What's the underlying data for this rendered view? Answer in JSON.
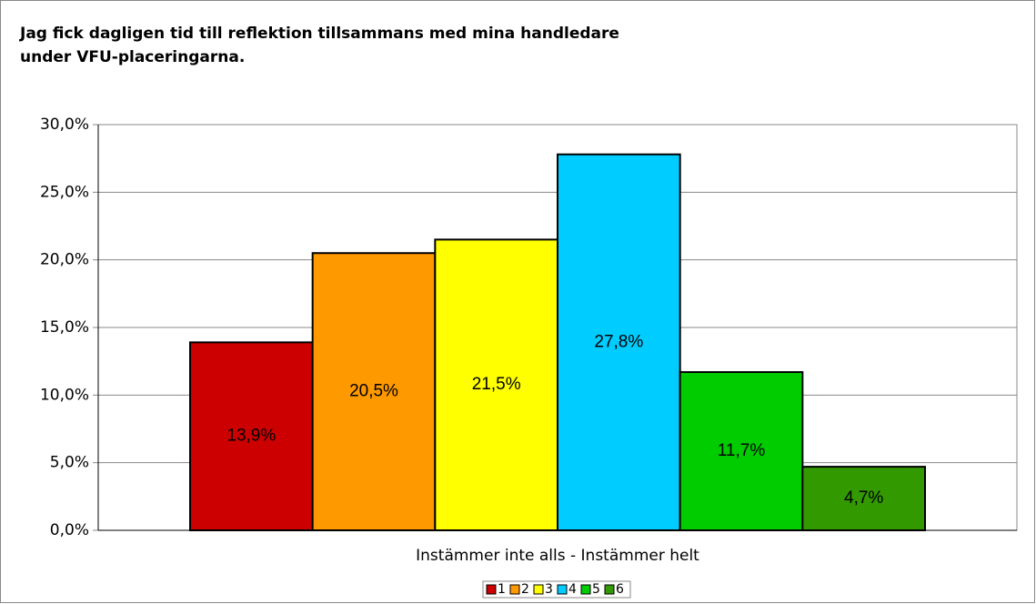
{
  "chart_data": {
    "type": "bar",
    "title": "Jag fick dagligen tid till reflektion tillsammans med mina handledare\nunder VFU-placeringarna.",
    "xlabel": "Instämmer inte alls - Instämmer helt",
    "series": [
      {
        "name": "1",
        "color": "#cc0000",
        "values": [
          13.9
        ],
        "value_labels": [
          "13,9%"
        ]
      },
      {
        "name": "2",
        "color": "#ff9900",
        "values": [
          20.5
        ],
        "value_labels": [
          "20,5%"
        ]
      },
      {
        "name": "3",
        "color": "#ffff00",
        "values": [
          21.5
        ],
        "value_labels": [
          "21,5%"
        ]
      },
      {
        "name": "4",
        "color": "#00ccff",
        "values": [
          27.8
        ],
        "value_labels": [
          "27,8%"
        ]
      },
      {
        "name": "5",
        "color": "#00cc00",
        "values": [
          11.7
        ],
        "value_labels": [
          "11,7%"
        ]
      },
      {
        "name": "6",
        "color": "#339900",
        "values": [
          4.7
        ],
        "value_labels": [
          "4,7%"
        ]
      }
    ],
    "ylim": [
      0,
      30
    ],
    "yticks": [
      {
        "value": 0,
        "label": "0,0%"
      },
      {
        "value": 5,
        "label": "5,0%"
      },
      {
        "value": 10,
        "label": "10,0%"
      },
      {
        "value": 15,
        "label": "15,0%"
      },
      {
        "value": 20,
        "label": "20,0%"
      },
      {
        "value": 25,
        "label": "25,0%"
      },
      {
        "value": 30,
        "label": "30,0%"
      }
    ],
    "grid": true,
    "legend": "bottom"
  }
}
